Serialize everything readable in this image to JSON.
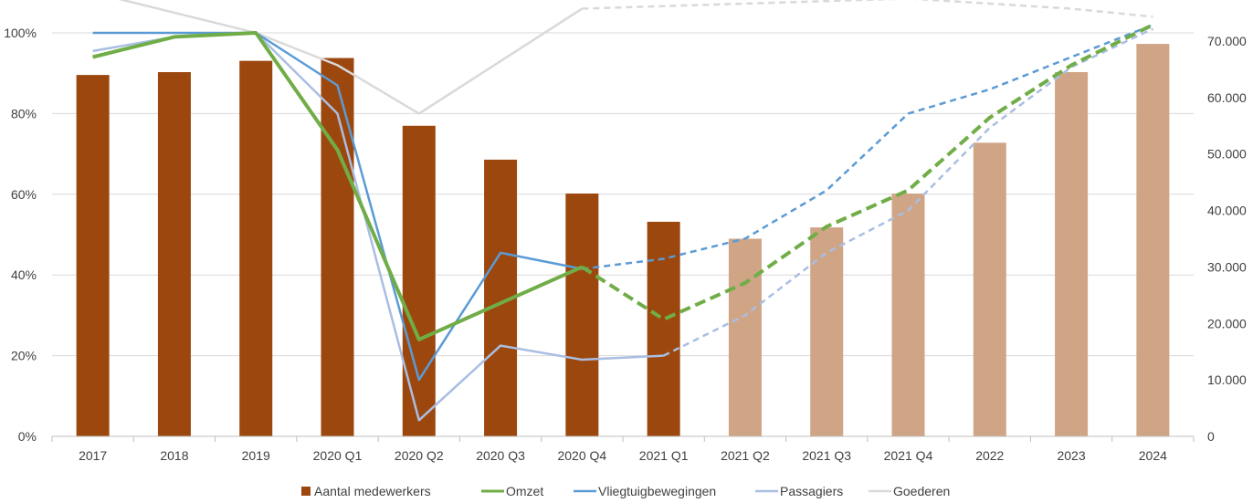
{
  "chart_data": {
    "type": "bar",
    "categories": [
      "2017",
      "2018",
      "2019",
      "2020 Q1",
      "2020 Q2",
      "2020 Q3",
      "2020 Q4",
      "2021 Q1",
      "2021 Q2",
      "2021 Q3",
      "2021 Q4",
      "2022",
      "2023",
      "2024"
    ],
    "y_left": {
      "min": 0,
      "max": 1.0,
      "ticks": [
        0,
        0.2,
        0.4,
        0.6,
        0.8,
        1.0
      ],
      "tick_labels": [
        "0%",
        "20%",
        "40%",
        "60%",
        "80%",
        "100%"
      ]
    },
    "y_right": {
      "min": 0,
      "max": 70000,
      "ticks": [
        0,
        10000,
        20000,
        30000,
        40000,
        50000,
        60000,
        70000
      ],
      "tick_labels": [
        "0",
        "10.000",
        "20.000",
        "30.000",
        "40.000",
        "50.000",
        "60.000",
        "70.000"
      ]
    },
    "grid": true,
    "legend_position": "bottom",
    "bars": {
      "name": "Aantal medewerkers",
      "axis": "right",
      "values": [
        64000,
        64500,
        66500,
        67000,
        55000,
        49000,
        43000,
        38000,
        35000,
        37000,
        43000,
        52000,
        64500,
        69500
      ],
      "color_actual": "#9C470E",
      "color_forecast": "#D0A586",
      "forecast_from_index": 8
    },
    "series": [
      {
        "name": "Omzet",
        "color": "#70AD47",
        "width": 4,
        "values": [
          0.94,
          0.99,
          1.0,
          0.71,
          0.24,
          0.33,
          0.42,
          0.29,
          0.38,
          0.52,
          0.61,
          0.79,
          0.92,
          1.02
        ],
        "forecast_from_index": 6
      },
      {
        "name": "Vliegtuigbewegingen",
        "color": "#5B9BD5",
        "width": 2.5,
        "values": [
          1.0,
          1.0,
          1.0,
          0.87,
          0.14,
          0.455,
          0.415,
          0.44,
          0.49,
          0.61,
          0.8,
          0.86,
          0.94,
          1.02
        ],
        "forecast_from_index": 6
      },
      {
        "name": "Passagiers",
        "color": "#A9BEE2",
        "width": 2.5,
        "values": [
          0.955,
          0.99,
          1.0,
          0.8,
          0.04,
          0.225,
          0.19,
          0.2,
          0.3,
          0.455,
          0.56,
          0.765,
          0.915,
          1.01
        ],
        "forecast_from_index": 7
      },
      {
        "name": "Goederen",
        "color": "#D9D9D9",
        "width": 2.5,
        "values": [
          1.1,
          null,
          1.0,
          0.92,
          0.8,
          null,
          1.06,
          null,
          null,
          null,
          1.085,
          null,
          1.06,
          1.04
        ],
        "forecast_from_index": 6
      }
    ],
    "legend": [
      "Aantal medewerkers",
      "Omzet",
      "Vliegtuigbewegingen",
      "Passagiers",
      "Goederen"
    ]
  }
}
